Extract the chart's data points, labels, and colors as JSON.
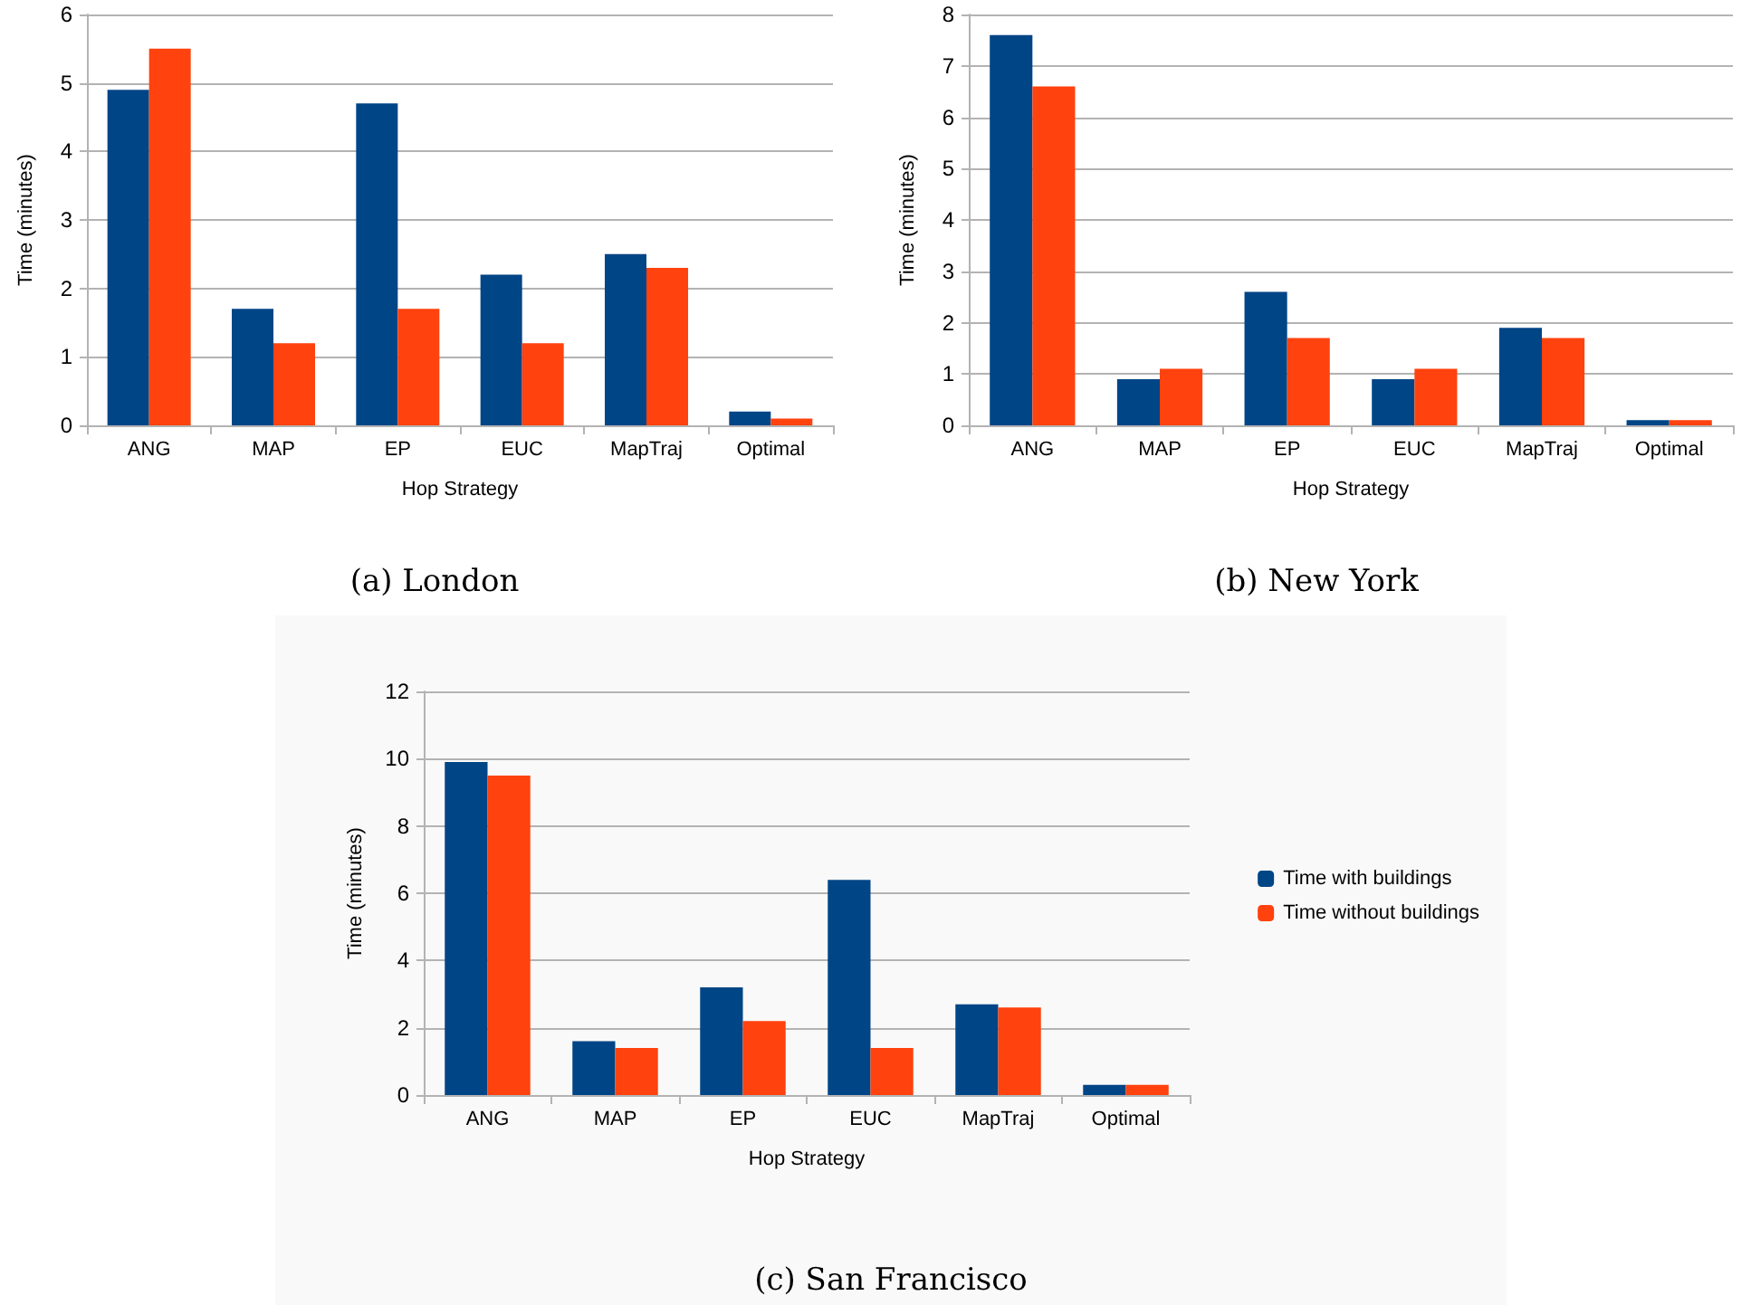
{
  "chart_data": [
    {
      "type": "bar",
      "title": "(a) London",
      "xlabel": "Hop Strategy",
      "ylabel": "Time (minutes)",
      "categories": [
        "ANG",
        "MAP",
        "EP",
        "EUC",
        "MapTraj",
        "Optimal"
      ],
      "series": [
        {
          "color": "#004586",
          "values": [
            4.9,
            1.7,
            4.7,
            2.2,
            2.5,
            0.2
          ]
        },
        {
          "color": "#ff420e",
          "values": [
            5.5,
            1.2,
            1.7,
            1.2,
            2.3,
            0.1
          ]
        }
      ],
      "ylim": [
        0,
        6
      ],
      "yticks": [
        0,
        1,
        2,
        3,
        4,
        5,
        6
      ],
      "grid": "y",
      "legend": false
    },
    {
      "type": "bar",
      "title": "(b) New York",
      "xlabel": "Hop Strategy",
      "ylabel": "Time (minutes)",
      "categories": [
        "ANG",
        "MAP",
        "EP",
        "EUC",
        "MapTraj",
        "Optimal"
      ],
      "series": [
        {
          "color": "#004586",
          "values": [
            7.6,
            0.9,
            2.6,
            0.9,
            1.9,
            0.1
          ]
        },
        {
          "color": "#ff420e",
          "values": [
            6.6,
            1.1,
            1.7,
            1.1,
            1.7,
            0.1
          ]
        }
      ],
      "ylim": [
        0,
        8
      ],
      "yticks": [
        0,
        1,
        2,
        3,
        4,
        5,
        6,
        7,
        8
      ],
      "grid": "y",
      "legend": false
    },
    {
      "type": "bar",
      "title": "(c) San Francisco",
      "xlabel": "Hop Strategy",
      "ylabel": "Time (minutes)",
      "categories": [
        "ANG",
        "MAP",
        "EP",
        "EUC",
        "MapTraj",
        "Optimal"
      ],
      "series": [
        {
          "name": "Time with buildings",
          "color": "#004586",
          "values": [
            9.9,
            1.6,
            3.2,
            6.4,
            2.7,
            0.3
          ]
        },
        {
          "name": "Time without buildings",
          "color": "#ff420e",
          "values": [
            9.5,
            1.4,
            2.2,
            1.4,
            2.6,
            0.3
          ]
        }
      ],
      "ylim": [
        0,
        12
      ],
      "yticks": [
        0,
        2,
        4,
        6,
        8,
        10,
        12
      ],
      "grid": "y",
      "legend": "right"
    }
  ]
}
